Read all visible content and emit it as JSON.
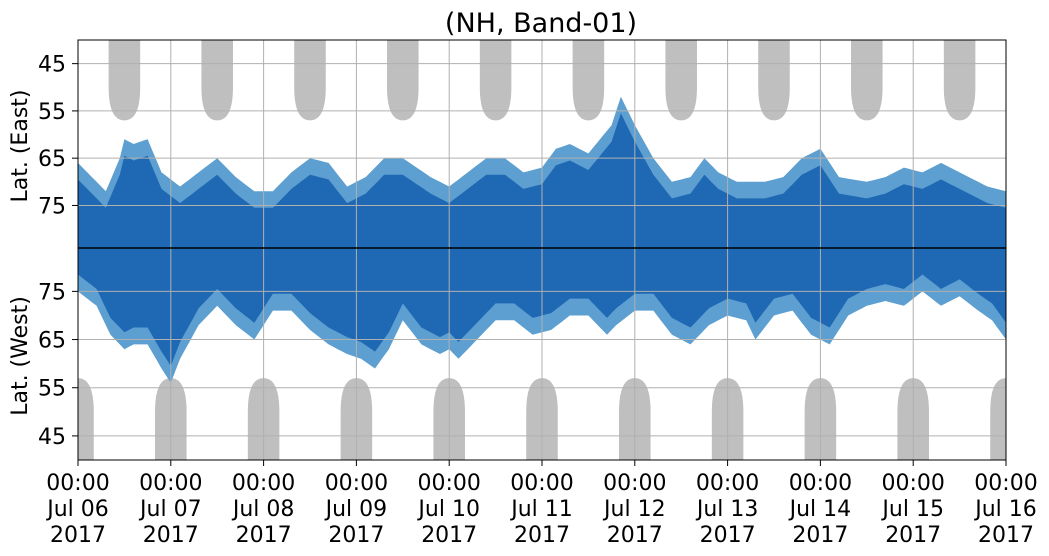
{
  "chart_data": {
    "type": "heatmap",
    "title": "(NH, Band-01)",
    "ylabel_top": "Lat. (East)",
    "ylabel_bottom": "Lat. (West)",
    "x_start": "2017-07-06 00:00",
    "x_end": "2017-07-16 00:00",
    "x_ticks": [
      {
        "time": "00:00",
        "date": "Jul 06",
        "year": "2017"
      },
      {
        "time": "00:00",
        "date": "Jul 07",
        "year": "2017"
      },
      {
        "time": "00:00",
        "date": "Jul 08",
        "year": "2017"
      },
      {
        "time": "00:00",
        "date": "Jul 09",
        "year": "2017"
      },
      {
        "time": "00:00",
        "date": "Jul 10",
        "year": "2017"
      },
      {
        "time": "00:00",
        "date": "Jul 11",
        "year": "2017"
      },
      {
        "time": "00:00",
        "date": "Jul 12",
        "year": "2017"
      },
      {
        "time": "00:00",
        "date": "Jul 13",
        "year": "2017"
      },
      {
        "time": "00:00",
        "date": "Jul 14",
        "year": "2017"
      },
      {
        "time": "00:00",
        "date": "Jul 15",
        "year": "2017"
      },
      {
        "time": "00:00",
        "date": "Jul 16",
        "year": "2017"
      }
    ],
    "y_ticks_east": [
      "45",
      "55",
      "65",
      "75"
    ],
    "y_ticks_west": [
      "75",
      "65",
      "55",
      "45"
    ],
    "lat_range": [
      40,
      84
    ],
    "grid": true,
    "colors": {
      "dark": "#1f68b4",
      "light": "#5c9fd0",
      "terminator": "#bfbfbf",
      "divider": "#000000"
    },
    "terminator_east_centers_day": [
      0.5,
      1.5,
      2.5,
      3.5,
      4.5,
      5.5,
      6.5,
      7.5,
      8.5,
      9.5
    ],
    "terminator_west_centers_day": [
      0.0,
      1.0,
      2.0,
      3.0,
      4.0,
      5.0,
      6.0,
      7.0,
      8.0,
      9.0,
      10.0
    ],
    "terminator_peak_lat": 57,
    "terminator_base_lat": 40,
    "east_bottom_lat": [
      [
        0.0,
        68
      ],
      [
        0.1,
        70
      ],
      [
        0.3,
        74
      ],
      [
        0.45,
        67
      ],
      [
        0.5,
        63
      ],
      [
        0.6,
        64
      ],
      [
        0.75,
        63
      ],
      [
        0.9,
        70
      ],
      [
        1.1,
        73
      ],
      [
        1.3,
        70
      ],
      [
        1.5,
        67
      ],
      [
        1.7,
        71
      ],
      [
        1.9,
        74
      ],
      [
        2.1,
        74
      ],
      [
        2.3,
        70
      ],
      [
        2.5,
        67
      ],
      [
        2.7,
        68
      ],
      [
        2.9,
        73
      ],
      [
        3.1,
        71
      ],
      [
        3.3,
        67
      ],
      [
        3.5,
        67
      ],
      [
        3.8,
        71
      ],
      [
        4.0,
        73
      ],
      [
        4.2,
        70
      ],
      [
        4.4,
        67
      ],
      [
        4.6,
        67
      ],
      [
        4.8,
        70
      ],
      [
        5.0,
        69
      ],
      [
        5.15,
        65
      ],
      [
        5.3,
        64
      ],
      [
        5.5,
        66
      ],
      [
        5.75,
        60
      ],
      [
        5.85,
        54
      ],
      [
        6.0,
        60
      ],
      [
        6.2,
        67
      ],
      [
        6.4,
        72
      ],
      [
        6.6,
        71
      ],
      [
        6.75,
        67
      ],
      [
        6.9,
        70
      ],
      [
        7.1,
        72
      ],
      [
        7.4,
        72
      ],
      [
        7.6,
        71
      ],
      [
        7.8,
        67
      ],
      [
        8.0,
        65
      ],
      [
        8.2,
        71
      ],
      [
        8.5,
        72
      ],
      [
        8.7,
        71
      ],
      [
        8.9,
        69
      ],
      [
        9.1,
        70
      ],
      [
        9.3,
        68
      ],
      [
        9.5,
        70
      ],
      [
        9.8,
        73
      ],
      [
        10.0,
        74
      ]
    ],
    "west_bottom_lat": [
      [
        0.0,
        77
      ],
      [
        0.2,
        74
      ],
      [
        0.35,
        68
      ],
      [
        0.5,
        65
      ],
      [
        0.6,
        66
      ],
      [
        0.75,
        66
      ],
      [
        0.9,
        61
      ],
      [
        1.0,
        58
      ],
      [
        1.1,
        63
      ],
      [
        1.3,
        70
      ],
      [
        1.5,
        74
      ],
      [
        1.7,
        70
      ],
      [
        1.9,
        67
      ],
      [
        2.1,
        73
      ],
      [
        2.3,
        73
      ],
      [
        2.5,
        69
      ],
      [
        2.7,
        66
      ],
      [
        2.9,
        64
      ],
      [
        3.05,
        63
      ],
      [
        3.2,
        61
      ],
      [
        3.35,
        65
      ],
      [
        3.5,
        71
      ],
      [
        3.7,
        66
      ],
      [
        3.9,
        64
      ],
      [
        4.0,
        65
      ],
      [
        4.1,
        63
      ],
      [
        4.3,
        67
      ],
      [
        4.5,
        71
      ],
      [
        4.7,
        71
      ],
      [
        4.9,
        68
      ],
      [
        5.1,
        69
      ],
      [
        5.3,
        72
      ],
      [
        5.5,
        72
      ],
      [
        5.7,
        68
      ],
      [
        5.8,
        70
      ],
      [
        6.0,
        73
      ],
      [
        6.2,
        73
      ],
      [
        6.4,
        68
      ],
      [
        6.6,
        66
      ],
      [
        6.8,
        70
      ],
      [
        7.0,
        72
      ],
      [
        7.2,
        71
      ],
      [
        7.3,
        67
      ],
      [
        7.5,
        72
      ],
      [
        7.7,
        73
      ],
      [
        7.9,
        68
      ],
      [
        8.1,
        66
      ],
      [
        8.3,
        72
      ],
      [
        8.5,
        74
      ],
      [
        8.7,
        75
      ],
      [
        8.9,
        74
      ],
      [
        9.1,
        77
      ],
      [
        9.3,
        74
      ],
      [
        9.5,
        76
      ],
      [
        9.7,
        73
      ],
      [
        9.85,
        71
      ],
      [
        10.0,
        67
      ]
    ]
  }
}
